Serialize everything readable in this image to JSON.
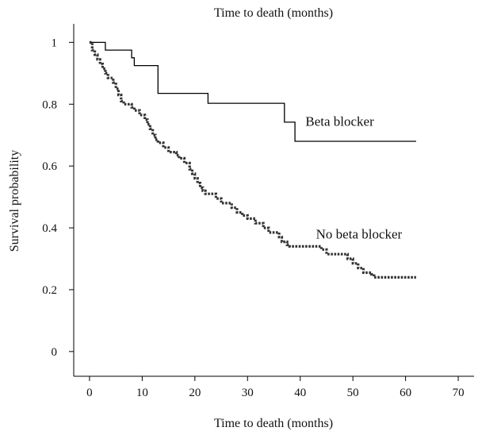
{
  "chart_data": {
    "type": "line",
    "title": "Time to death (months)",
    "xlabel": "Time to death (months)",
    "ylabel": "Survival probability",
    "xlim": [
      -3,
      73
    ],
    "ylim": [
      -0.08,
      1.06
    ],
    "xticks": [
      0,
      10,
      20,
      30,
      40,
      50,
      60,
      70
    ],
    "yticks": [
      0,
      0.2,
      0.4,
      0.6,
      0.8,
      1
    ],
    "ytick_labels": [
      "0",
      "0.2",
      "0.4",
      "0.6",
      "0.8",
      "1"
    ],
    "grid": false,
    "series": [
      {
        "name": "Beta blocker",
        "style": "solid",
        "color": "#000000",
        "step": true,
        "points": [
          [
            0,
            1.0
          ],
          [
            3,
            0.975
          ],
          [
            8,
            0.95
          ],
          [
            8.5,
            0.925
          ],
          [
            13,
            0.835
          ],
          [
            22.5,
            0.803
          ],
          [
            37,
            0.742
          ],
          [
            39,
            0.68
          ],
          [
            62,
            0.68
          ]
        ]
      },
      {
        "name": "No beta blocker",
        "style": "dotted",
        "color": "#333333",
        "step": true,
        "points": [
          [
            0,
            1.0
          ],
          [
            0.5,
            0.975
          ],
          [
            1,
            0.96
          ],
          [
            1.5,
            0.945
          ],
          [
            2,
            0.93
          ],
          [
            2.5,
            0.915
          ],
          [
            3,
            0.9
          ],
          [
            3.5,
            0.885
          ],
          [
            4.5,
            0.87
          ],
          [
            5,
            0.85
          ],
          [
            5.5,
            0.83
          ],
          [
            6,
            0.81
          ],
          [
            6.5,
            0.8
          ],
          [
            8,
            0.79
          ],
          [
            8.5,
            0.78
          ],
          [
            9.5,
            0.765
          ],
          [
            10.5,
            0.75
          ],
          [
            11,
            0.735
          ],
          [
            11.5,
            0.72
          ],
          [
            12,
            0.7
          ],
          [
            12.5,
            0.685
          ],
          [
            13,
            0.675
          ],
          [
            14,
            0.66
          ],
          [
            15,
            0.645
          ],
          [
            16.5,
            0.635
          ],
          [
            17,
            0.625
          ],
          [
            18,
            0.61
          ],
          [
            19,
            0.59
          ],
          [
            19.5,
            0.575
          ],
          [
            20,
            0.56
          ],
          [
            20.5,
            0.545
          ],
          [
            21,
            0.53
          ],
          [
            21.5,
            0.52
          ],
          [
            22,
            0.51
          ],
          [
            24,
            0.495
          ],
          [
            25,
            0.48
          ],
          [
            27,
            0.465
          ],
          [
            28,
            0.45
          ],
          [
            29,
            0.44
          ],
          [
            30,
            0.43
          ],
          [
            31.5,
            0.415
          ],
          [
            33,
            0.4
          ],
          [
            34,
            0.385
          ],
          [
            36,
            0.37
          ],
          [
            36.5,
            0.355
          ],
          [
            37.5,
            0.345
          ],
          [
            38,
            0.34
          ],
          [
            44,
            0.33
          ],
          [
            45,
            0.315
          ],
          [
            49,
            0.3
          ],
          [
            50,
            0.285
          ],
          [
            51,
            0.27
          ],
          [
            52,
            0.255
          ],
          [
            53.5,
            0.25
          ],
          [
            54,
            0.24
          ],
          [
            62,
            0.24
          ]
        ]
      }
    ],
    "annotations": [
      {
        "text": "Beta blocker",
        "x": 41,
        "y": 0.73
      },
      {
        "text": "No beta blocker",
        "x": 43,
        "y": 0.365
      }
    ]
  }
}
